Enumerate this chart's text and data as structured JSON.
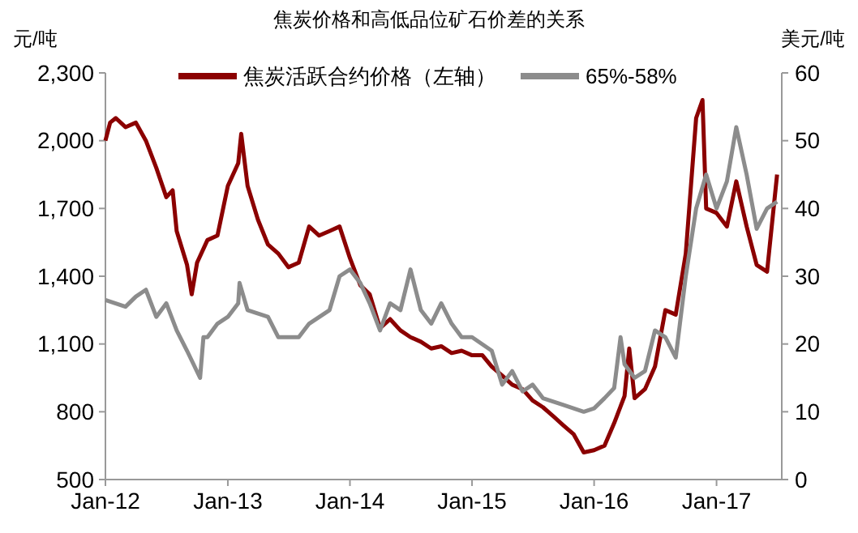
{
  "chart_data": {
    "type": "line",
    "title": "焦炭价格和高低品位矿石价差的关系",
    "ylabel": "元/吨",
    "y2label": "美元/吨",
    "legend": "top",
    "grid": false,
    "xlim": [
      "2012-01-01",
      "2017-07-15"
    ],
    "xticks": [
      {
        "value": "2012-01-01",
        "label": "Jan-12"
      },
      {
        "value": "2013-01-01",
        "label": "Jan-13"
      },
      {
        "value": "2014-01-01",
        "label": "Jan-14"
      },
      {
        "value": "2015-01-01",
        "label": "Jan-15"
      },
      {
        "value": "2016-01-01",
        "label": "Jan-16"
      },
      {
        "value": "2017-01-01",
        "label": "Jan-17"
      }
    ],
    "ylim": [
      500,
      2300
    ],
    "yticks": [
      {
        "value": 500,
        "label": "500"
      },
      {
        "value": 800,
        "label": "800"
      },
      {
        "value": 1100,
        "label": "1,100"
      },
      {
        "value": 1400,
        "label": "1,400"
      },
      {
        "value": 1700,
        "label": "1,700"
      },
      {
        "value": 2000,
        "label": "2,000"
      },
      {
        "value": 2300,
        "label": "2,300"
      }
    ],
    "y2lim": [
      0,
      60
    ],
    "y2ticks": [
      0,
      10,
      20,
      30,
      40,
      50,
      60
    ],
    "series": [
      {
        "name": "焦炭活跃合约价格（左轴）",
        "color": "#8b0000",
        "x": [
          "2012-01-01",
          "2012-01-15",
          "2012-02-01",
          "2012-03-01",
          "2012-04-01",
          "2012-05-01",
          "2012-06-01",
          "2012-07-01",
          "2012-07-20",
          "2012-08-01",
          "2012-09-01",
          "2012-09-15",
          "2012-10-01",
          "2012-11-01",
          "2012-12-01",
          "2013-01-01",
          "2013-02-01",
          "2013-02-10",
          "2013-03-01",
          "2013-04-01",
          "2013-05-01",
          "2013-06-01",
          "2013-07-01",
          "2013-08-01",
          "2013-09-01",
          "2013-10-01",
          "2013-11-01",
          "2013-12-01",
          "2014-01-01",
          "2014-02-01",
          "2014-03-01",
          "2014-04-01",
          "2014-05-01",
          "2014-06-01",
          "2014-07-01",
          "2014-08-01",
          "2014-09-01",
          "2014-10-01",
          "2014-11-01",
          "2014-12-01",
          "2015-01-01",
          "2015-02-01",
          "2015-03-01",
          "2015-04-01",
          "2015-05-01",
          "2015-06-01",
          "2015-07-01",
          "2015-08-01",
          "2015-09-01",
          "2015-10-01",
          "2015-11-01",
          "2015-12-01",
          "2016-01-01",
          "2016-02-01",
          "2016-03-01",
          "2016-04-01",
          "2016-04-15",
          "2016-05-01",
          "2016-06-01",
          "2016-07-01",
          "2016-08-01",
          "2016-09-01",
          "2016-10-01",
          "2016-11-01",
          "2016-11-20",
          "2016-12-01",
          "2017-01-01",
          "2017-02-01",
          "2017-03-01",
          "2017-04-01",
          "2017-05-01",
          "2017-06-01",
          "2017-07-01"
        ],
        "values": [
          2000,
          2080,
          2100,
          2060,
          2080,
          2000,
          1880,
          1750,
          1780,
          1600,
          1450,
          1320,
          1460,
          1560,
          1580,
          1800,
          1900,
          2030,
          1800,
          1650,
          1540,
          1500,
          1440,
          1460,
          1620,
          1580,
          1600,
          1620,
          1480,
          1360,
          1320,
          1170,
          1210,
          1160,
          1130,
          1110,
          1080,
          1090,
          1060,
          1070,
          1050,
          1050,
          1000,
          960,
          920,
          900,
          850,
          820,
          780,
          740,
          700,
          620,
          630,
          650,
          750,
          870,
          1080,
          860,
          900,
          1000,
          1250,
          1230,
          1500,
          2100,
          2180,
          1700,
          1680,
          1620,
          1820,
          1620,
          1450,
          1420,
          1850
        ]
      },
      {
        "name": "65%-58%",
        "color": "#8c8c8c",
        "axis": "y2",
        "x": [
          "2012-01-01",
          "2012-03-01",
          "2012-04-01",
          "2012-05-01",
          "2012-06-01",
          "2012-07-01",
          "2012-08-01",
          "2012-09-01",
          "2012-10-10",
          "2012-10-20",
          "2012-11-01",
          "2012-12-01",
          "2013-01-01",
          "2013-02-01",
          "2013-02-05",
          "2013-03-01",
          "2013-05-01",
          "2013-06-01",
          "2013-08-01",
          "2013-09-01",
          "2013-11-01",
          "2013-12-01",
          "2014-01-01",
          "2014-02-01",
          "2014-03-01",
          "2014-04-01",
          "2014-05-01",
          "2014-06-01",
          "2014-07-01",
          "2014-08-01",
          "2014-09-01",
          "2014-10-01",
          "2014-11-01",
          "2014-12-01",
          "2015-01-01",
          "2015-03-01",
          "2015-04-01",
          "2015-05-01",
          "2015-06-01",
          "2015-07-01",
          "2015-08-01",
          "2015-10-01",
          "2015-12-01",
          "2016-01-01",
          "2016-02-01",
          "2016-03-01",
          "2016-03-20",
          "2016-04-01",
          "2016-05-01",
          "2016-06-01",
          "2016-07-01",
          "2016-08-01",
          "2016-09-01",
          "2016-10-01",
          "2016-11-01",
          "2016-12-01",
          "2017-01-01",
          "2017-02-01",
          "2017-03-01",
          "2017-04-01",
          "2017-05-01",
          "2017-06-01",
          "2017-07-01"
        ],
        "values": [
          26.5,
          25.5,
          27,
          28,
          24,
          26,
          22,
          19,
          15,
          21,
          21,
          23,
          24,
          26,
          29,
          25,
          24,
          21,
          21,
          23,
          25,
          30,
          31,
          29,
          26,
          22,
          26,
          25,
          31,
          25,
          23,
          26,
          23,
          21,
          21,
          19,
          14,
          16,
          13,
          14,
          12,
          11,
          10,
          10.5,
          12,
          13.5,
          21,
          17,
          15,
          16,
          22,
          21,
          18,
          30,
          40,
          45,
          40,
          44,
          52,
          45,
          37,
          40,
          41
        ]
      }
    ]
  }
}
